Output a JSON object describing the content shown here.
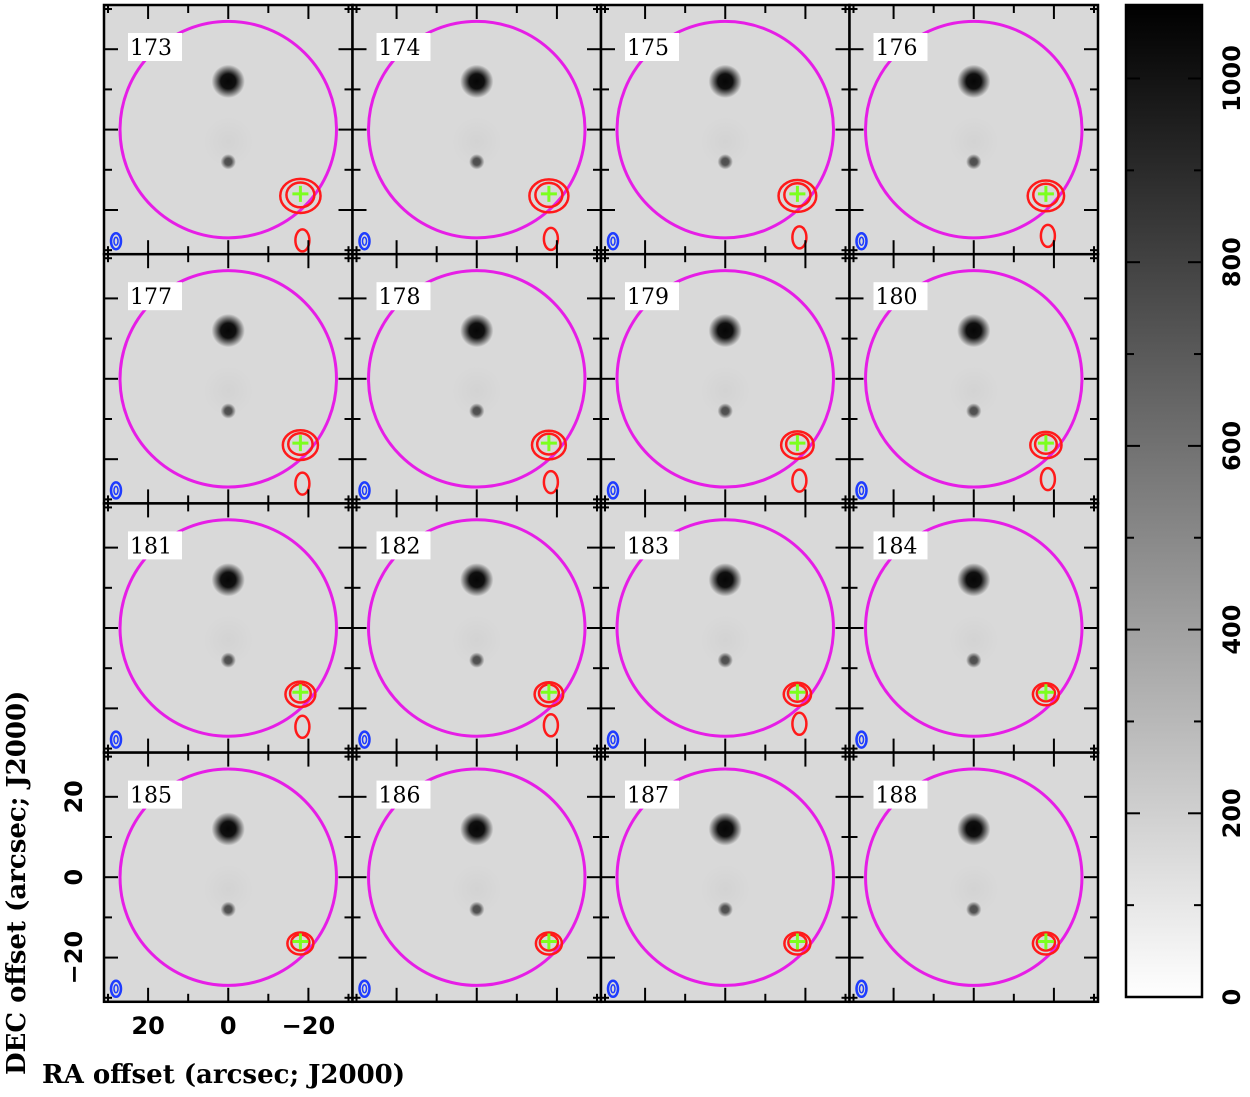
{
  "chart_data": {
    "type": "heatmap",
    "description_units": {
      "xlabel": "RA offset (arcsec; J2000)",
      "ylabel": "DEC offset (arcsec; J2000)"
    },
    "xlabel": "RA offset (arcsec; J2000)",
    "ylabel": "DEC offset (arcsec; J2000)",
    "x_ticks": [
      20,
      0,
      -20
    ],
    "x_tick_labels": [
      "20",
      "0",
      "−20"
    ],
    "y_ticks": [
      20,
      0,
      -20
    ],
    "y_tick_labels": [
      "20",
      "0",
      "−20"
    ],
    "xlim": [
      31,
      -31
    ],
    "ylim": [
      -31,
      31
    ],
    "panel_labels": [
      "173",
      "174",
      "175",
      "176",
      "177",
      "178",
      "179",
      "180",
      "181",
      "182",
      "183",
      "184",
      "185",
      "186",
      "187",
      "188"
    ],
    "grid_columns": 4,
    "grid_rows": 4,
    "primary_beam_circle": {
      "center": [
        0,
        0
      ],
      "radius_arcsec": 27,
      "color": "#e61ee6"
    },
    "source_marker": {
      "position": [
        -18,
        -16
      ],
      "color": "#7cff1e",
      "shape": "plus"
    },
    "contour_color": "#ff1a1a",
    "beam_color": "#1e3cff",
    "colorbar": {
      "min": 0,
      "max": 1080,
      "ticks": [
        0,
        200,
        400,
        600,
        800,
        1000
      ],
      "tick_labels": [
        "0",
        "200",
        "400",
        "600",
        "800",
        "1000"
      ],
      "colormap": "white-to-black"
    },
    "background_sources": [
      {
        "position": [
          0,
          12
        ],
        "peak": 1050,
        "size": 2.6
      },
      {
        "position": [
          0,
          -8
        ],
        "peak": 700,
        "size": 1.2
      },
      {
        "position": [
          0,
          -3
        ],
        "peak": 260,
        "size": 4.0
      }
    ]
  }
}
